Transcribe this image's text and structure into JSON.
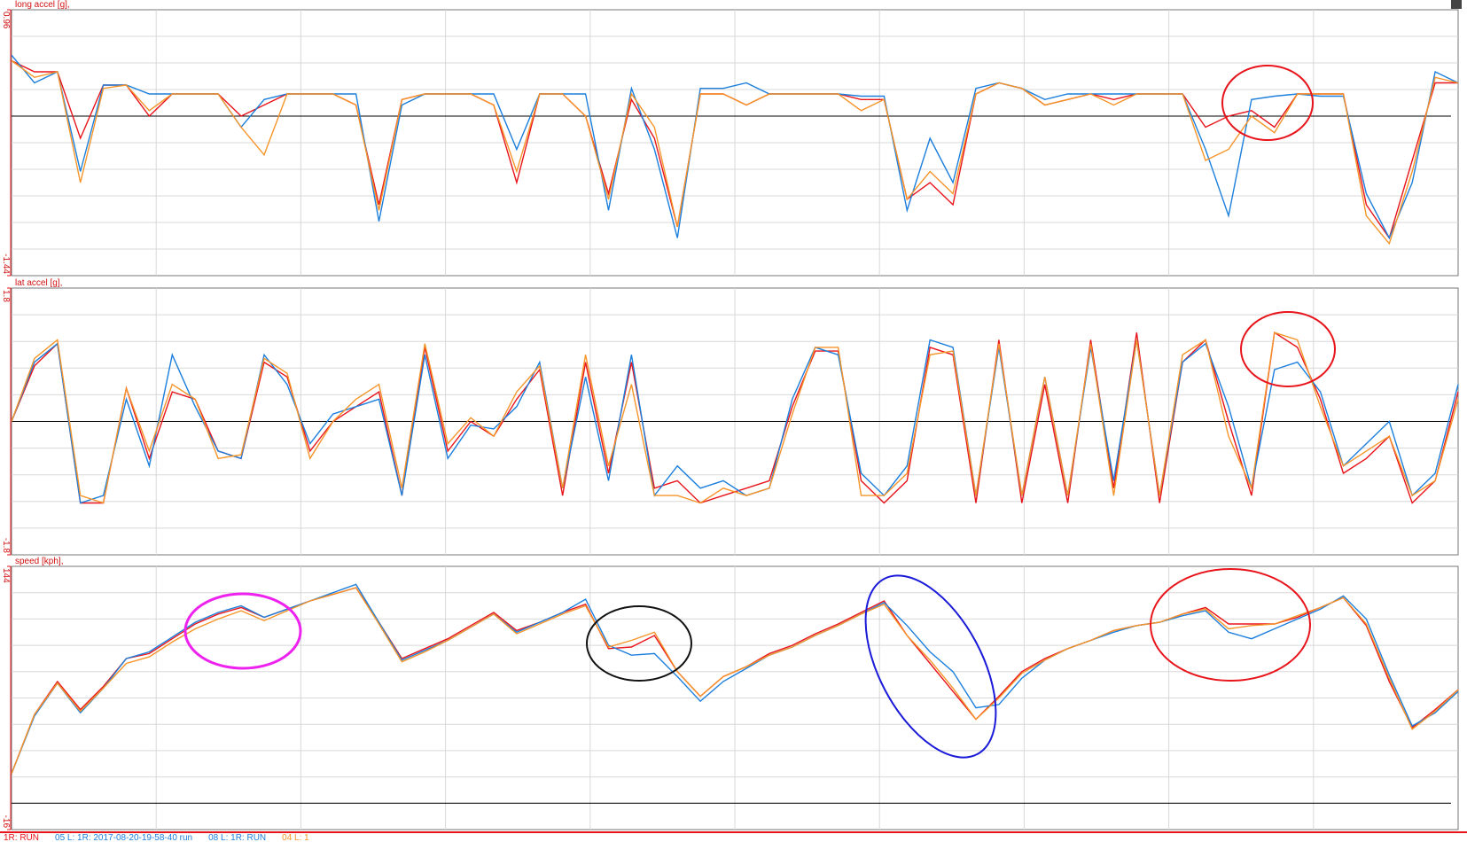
{
  "chart_data": [
    {
      "type": "line",
      "title": "long accel [g],",
      "ylim": [
        -1.44,
        0.96
      ],
      "yticks": [
        -1.44,
        0.96
      ],
      "ygrid": [
        -1.2,
        -0.96,
        -0.72,
        -0.48,
        -0.24,
        0,
        0.24,
        0.48,
        0.72
      ],
      "series": [
        {
          "color": "#e8141b",
          "values": [
            0.5,
            0.4,
            0.4,
            -0.2,
            0.28,
            0.28,
            0.0,
            0.2,
            0.2,
            0.2,
            0.0,
            0.1,
            0.2,
            0.2,
            0.2,
            0.1,
            -0.8,
            0.15,
            0.2,
            0.2,
            0.2,
            0.1,
            -0.6,
            0.2,
            0.2,
            0.0,
            -0.7,
            0.15,
            -0.2,
            -1.0,
            0.2,
            0.2,
            0.1,
            0.2,
            0.2,
            0.2,
            0.2,
            0.15,
            0.15,
            -0.75,
            -0.6,
            -0.8,
            0.2,
            0.3,
            0.25,
            0.1,
            0.15,
            0.2,
            0.15,
            0.2,
            0.2,
            0.2,
            -0.1,
            0.0,
            0.05,
            -0.1,
            0.2,
            0.2,
            0.2,
            -0.8,
            -1.1,
            -0.4,
            0.3,
            0.3
          ]
        },
        {
          "color": "#1c7fdc",
          "values": [
            0.55,
            0.3,
            0.4,
            -0.5,
            0.28,
            0.28,
            0.2,
            0.2,
            0.2,
            0.2,
            -0.1,
            0.15,
            0.2,
            0.2,
            0.2,
            0.2,
            -0.95,
            0.1,
            0.2,
            0.2,
            0.2,
            0.2,
            -0.3,
            0.2,
            0.2,
            0.2,
            -0.85,
            0.25,
            -0.3,
            -1.1,
            0.25,
            0.25,
            0.3,
            0.2,
            0.2,
            0.2,
            0.2,
            0.18,
            0.18,
            -0.85,
            -0.2,
            -0.6,
            0.25,
            0.3,
            0.25,
            0.15,
            0.2,
            0.2,
            0.2,
            0.2,
            0.2,
            0.2,
            -0.3,
            -0.9,
            0.15,
            0.18,
            0.2,
            0.18,
            0.18,
            -0.7,
            -1.1,
            -0.6,
            0.4,
            0.3
          ]
        },
        {
          "color": "#f5952a",
          "values": [
            0.5,
            0.35,
            0.4,
            -0.6,
            0.25,
            0.28,
            0.05,
            0.2,
            0.2,
            0.2,
            -0.1,
            -0.35,
            0.2,
            0.2,
            0.2,
            0.1,
            -0.85,
            0.15,
            0.2,
            0.2,
            0.2,
            0.1,
            -0.5,
            0.2,
            0.2,
            0.0,
            -0.75,
            0.2,
            -0.1,
            -1.0,
            0.2,
            0.2,
            0.1,
            0.2,
            0.2,
            0.2,
            0.2,
            0.05,
            0.15,
            -0.75,
            -0.5,
            -0.7,
            0.2,
            0.3,
            0.25,
            0.1,
            0.15,
            0.2,
            0.1,
            0.2,
            0.2,
            0.2,
            -0.4,
            -0.3,
            0.0,
            -0.15,
            0.2,
            0.2,
            0.2,
            -0.9,
            -1.15,
            -0.5,
            0.35,
            0.3
          ]
        }
      ]
    },
    {
      "type": "line",
      "title": "lat accel [g],",
      "ylim": [
        -1.8,
        1.8
      ],
      "yticks": [
        -1.8,
        1.8
      ],
      "ygrid": [
        -1.44,
        -1.08,
        -0.72,
        -0.36,
        0,
        0.36,
        0.72,
        1.08,
        1.44
      ],
      "series": [
        {
          "color": "#e8141b",
          "values": [
            0,
            0.75,
            1.05,
            -1.1,
            -1.1,
            0.45,
            -0.5,
            0.4,
            0.3,
            -0.4,
            -0.5,
            0.8,
            0.6,
            -0.4,
            0,
            0.2,
            0.4,
            -1.0,
            1.0,
            -0.4,
            0,
            -0.2,
            0.3,
            0.7,
            -1.0,
            0.8,
            -0.7,
            0.8,
            -0.9,
            -0.8,
            -1.1,
            -1.0,
            -0.9,
            -0.8,
            0.2,
            0.95,
            0.95,
            -0.8,
            -1.1,
            -0.8,
            1.0,
            0.9,
            -1.1,
            1.1,
            -1.1,
            0.5,
            -1.1,
            1.1,
            -0.9,
            1.2,
            -1.1,
            0.8,
            1.1,
            0,
            -1.0,
            1.2,
            1.0,
            0.3,
            -0.7,
            -0.5,
            -0.2,
            -1.1,
            -0.8,
            0.4
          ]
        },
        {
          "color": "#1c7fdc",
          "values": [
            0,
            0.8,
            1.05,
            -1.1,
            -1.0,
            0.3,
            -0.6,
            0.9,
            0.2,
            -0.4,
            -0.5,
            0.9,
            0.5,
            -0.3,
            0.1,
            0.2,
            0.3,
            -1.0,
            0.9,
            -0.5,
            -0.05,
            -0.1,
            0.2,
            0.8,
            -0.9,
            0.6,
            -0.8,
            0.9,
            -1.0,
            -0.6,
            -0.9,
            -0.8,
            -1.0,
            -0.9,
            0.3,
            1.0,
            0.9,
            -0.7,
            -1.0,
            -0.6,
            1.1,
            1.0,
            -1.0,
            1.0,
            -1.0,
            0.6,
            -1.0,
            1.0,
            -0.8,
            1.1,
            -1.0,
            0.8,
            1.05,
            0.2,
            -0.9,
            0.7,
            0.8,
            0.4,
            -0.6,
            -0.3,
            0,
            -1.0,
            -0.7,
            0.5
          ]
        },
        {
          "color": "#f5952a",
          "values": [
            0,
            0.85,
            1.1,
            -1.0,
            -1.1,
            0.45,
            -0.4,
            0.5,
            0.3,
            -0.5,
            -0.45,
            0.85,
            0.65,
            -0.5,
            0,
            0.3,
            0.5,
            -0.9,
            1.05,
            -0.3,
            0.05,
            -0.2,
            0.4,
            0.75,
            -0.9,
            0.9,
            -0.6,
            0.5,
            -1.0,
            -1.0,
            -1.1,
            -0.9,
            -1.0,
            -0.9,
            0.1,
            1.0,
            1.0,
            -1.0,
            -1.0,
            -0.7,
            0.9,
            0.95,
            -1.0,
            1.05,
            -1.0,
            0.6,
            -1.0,
            1.05,
            -1.0,
            1.1,
            -1.0,
            0.9,
            1.1,
            -0.2,
            -0.9,
            1.2,
            1.1,
            0.2,
            -0.6,
            -0.4,
            -0.2,
            -1.0,
            -0.8,
            0.3
          ]
        }
      ]
    },
    {
      "type": "line",
      "title": "speed [kph],",
      "ylim": [
        -16,
        144
      ],
      "yticks": [
        -16,
        144
      ],
      "ygrid": [
        0,
        16,
        32,
        48,
        64,
        80,
        96,
        112,
        128
      ],
      "series": [
        {
          "color": "#e8141b",
          "values": [
            18,
            54,
            74,
            57,
            71,
            88,
            91,
            100,
            109,
            115,
            119,
            113,
            118,
            123,
            127,
            131,
            110,
            88,
            94,
            100,
            108,
            116,
            105,
            110,
            116,
            121,
            94,
            95,
            102,
            80,
            65,
            77,
            83,
            91,
            96,
            103,
            109,
            116,
            123,
            102,
            85,
            68,
            51,
            65,
            80,
            88,
            94,
            99,
            105,
            108,
            110,
            115,
            119,
            109,
            109,
            109,
            113,
            119,
            125,
            108,
            74,
            46,
            57,
            69
          ]
        },
        {
          "color": "#1c7fdc",
          "values": [
            18,
            53,
            73,
            55,
            70,
            88,
            92,
            101,
            110,
            116,
            120,
            113,
            118,
            123,
            128,
            133,
            110,
            87,
            93,
            99,
            107,
            115,
            104,
            110,
            116,
            124,
            96,
            90,
            91,
            77,
            62,
            74,
            82,
            90,
            95,
            102,
            108,
            115,
            122,
            108,
            92,
            80,
            58,
            60,
            76,
            87,
            94,
            99,
            104,
            108,
            110,
            114,
            117,
            104,
            100,
            106,
            112,
            118,
            126,
            112,
            78,
            47,
            55,
            68
          ]
        },
        {
          "color": "#f5952a",
          "values": [
            18,
            54,
            73,
            56,
            70,
            85,
            89,
            98,
            106,
            112,
            117,
            111,
            117,
            123,
            127,
            131,
            109,
            86,
            92,
            99,
            107,
            115,
            103,
            109,
            115,
            120,
            95,
            99,
            104,
            80,
            65,
            77,
            83,
            90,
            95,
            102,
            108,
            115,
            121,
            102,
            87,
            70,
            51,
            64,
            79,
            87,
            94,
            99,
            105,
            108,
            110,
            115,
            118,
            106,
            108,
            109,
            114,
            119,
            125,
            109,
            76,
            45,
            56,
            69
          ]
        }
      ]
    }
  ],
  "legend": [
    {
      "text": "1R: RUN",
      "color": "#e8141b"
    },
    {
      "text": "05 L: 1R: 2017-08-20-19-58-40  run",
      "color": "#1c7fdc"
    },
    {
      "text": "08 L: 1R: RUN",
      "color": "#1c7fdc"
    },
    {
      "text": "04 L: 1",
      "color": "#f5952a"
    }
  ]
}
